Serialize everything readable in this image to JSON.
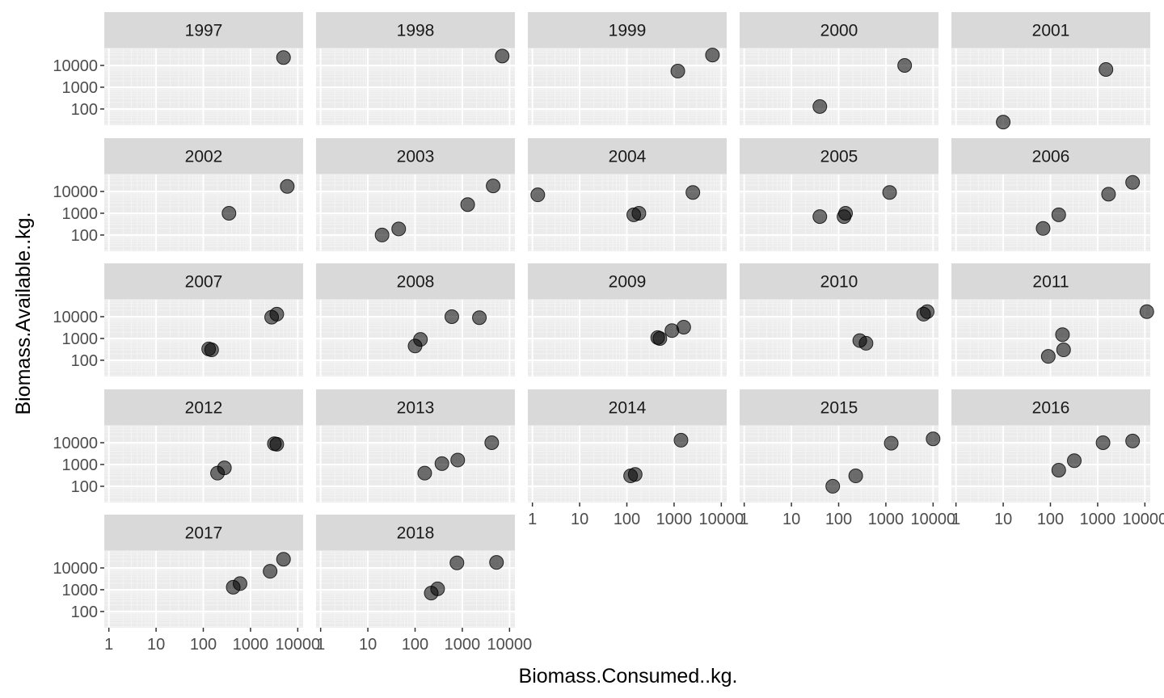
{
  "chart_data": {
    "type": "scatter",
    "facet_by": "year",
    "xlabel": "Biomass.Consumed..kg.",
    "ylabel": "Biomass.Available..kg.",
    "x_scale": "log10",
    "y_scale": "log10",
    "xlim": [
      0.8,
      13000
    ],
    "ylim": [
      18,
      60000
    ],
    "x_ticks": [
      1,
      10,
      100,
      1000,
      10000
    ],
    "x_tick_labels": [
      "1",
      "10",
      "100",
      "1000",
      "10000"
    ],
    "y_ticks": [
      100,
      1000,
      10000
    ],
    "y_tick_labels": [
      "100",
      "1000",
      "10000"
    ],
    "grid": true,
    "point_color": "#000000",
    "point_opacity": 0.55,
    "panel_background": "#ebebeb",
    "strip_background": "#d9d9d9",
    "panels": [
      {
        "title": "1997",
        "points": [
          [
            5000,
            23000
          ]
        ]
      },
      {
        "title": "1998",
        "points": [
          [
            7000,
            27000
          ]
        ]
      },
      {
        "title": "1999",
        "points": [
          [
            1200,
            5500
          ],
          [
            6500,
            30000
          ]
        ]
      },
      {
        "title": "2000",
        "points": [
          [
            40,
            130
          ],
          [
            2500,
            10000
          ]
        ]
      },
      {
        "title": "2001",
        "points": [
          [
            10,
            25
          ],
          [
            1500,
            6500
          ]
        ]
      },
      {
        "title": "2002",
        "points": [
          [
            350,
            1000
          ],
          [
            6000,
            17000
          ]
        ]
      },
      {
        "title": "2003",
        "points": [
          [
            20,
            100
          ],
          [
            45,
            190
          ],
          [
            1300,
            2500
          ],
          [
            4500,
            18000
          ]
        ]
      },
      {
        "title": "2004",
        "points": [
          [
            1.3,
            7000
          ],
          [
            140,
            850
          ],
          [
            180,
            1000
          ],
          [
            2500,
            9000
          ]
        ]
      },
      {
        "title": "2005",
        "points": [
          [
            40,
            700
          ],
          [
            130,
            700
          ],
          [
            140,
            1000
          ],
          [
            1200,
            9000
          ]
        ]
      },
      {
        "title": "2006",
        "points": [
          [
            70,
            200
          ],
          [
            150,
            850
          ],
          [
            1700,
            7500
          ],
          [
            5500,
            26000
          ]
        ]
      },
      {
        "title": "2007",
        "points": [
          [
            130,
            330
          ],
          [
            150,
            300
          ],
          [
            2800,
            9500
          ],
          [
            3600,
            13000
          ]
        ]
      },
      {
        "title": "2008",
        "points": [
          [
            100,
            450
          ],
          [
            130,
            900
          ],
          [
            600,
            10000
          ],
          [
            2300,
            9000
          ]
        ]
      },
      {
        "title": "2009",
        "points": [
          [
            450,
            1100
          ],
          [
            500,
            1000
          ],
          [
            900,
            2300
          ],
          [
            1600,
            3300
          ]
        ]
      },
      {
        "title": "2010",
        "points": [
          [
            280,
            800
          ],
          [
            380,
            600
          ],
          [
            6300,
            13000
          ],
          [
            7500,
            17000
          ]
        ]
      },
      {
        "title": "2011",
        "points": [
          [
            90,
            150
          ],
          [
            180,
            1500
          ],
          [
            190,
            300
          ],
          [
            11000,
            17000
          ]
        ]
      },
      {
        "title": "2012",
        "points": [
          [
            200,
            400
          ],
          [
            280,
            700
          ],
          [
            3200,
            9000
          ],
          [
            3600,
            8500
          ]
        ]
      },
      {
        "title": "2013",
        "points": [
          [
            160,
            400
          ],
          [
            370,
            1100
          ],
          [
            800,
            1600
          ],
          [
            4200,
            10000
          ]
        ]
      },
      {
        "title": "2014",
        "points": [
          [
            120,
            300
          ],
          [
            150,
            350
          ],
          [
            1400,
            13000
          ]
        ]
      },
      {
        "title": "2015",
        "points": [
          [
            75,
            100
          ],
          [
            230,
            300
          ],
          [
            1300,
            9500
          ],
          [
            10000,
            15000
          ]
        ]
      },
      {
        "title": "2016",
        "points": [
          [
            150,
            550
          ],
          [
            320,
            1500
          ],
          [
            1300,
            10000
          ],
          [
            5500,
            12000
          ]
        ]
      },
      {
        "title": "2017",
        "points": [
          [
            430,
            1300
          ],
          [
            600,
            1900
          ],
          [
            2600,
            7000
          ],
          [
            5000,
            25000
          ]
        ]
      },
      {
        "title": "2018",
        "points": [
          [
            220,
            700
          ],
          [
            300,
            1100
          ],
          [
            770,
            17000
          ],
          [
            5300,
            18000
          ]
        ]
      }
    ]
  }
}
